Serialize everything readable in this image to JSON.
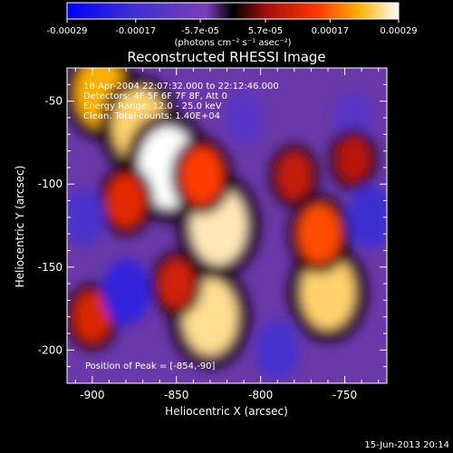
{
  "colorbar": {
    "tick_labels": [
      "-0.00029",
      "-0.00017",
      "-5.7e-05",
      "5.7e-05",
      "0.00017",
      "0.00029"
    ],
    "unit_label": "(photons cm⁻² s⁻¹ asec⁻²)",
    "range": [
      -0.00029,
      0.00029
    ]
  },
  "plot": {
    "title": "Reconstructed RHESSI Image",
    "xlabel": "Heliocentric X (arcsec)",
    "ylabel": "Heliocentric Y (arcsec)",
    "x_ticks": [
      "-900",
      "-850",
      "-800",
      "-750"
    ],
    "y_ticks": [
      "-50",
      "-100",
      "-150",
      "-200"
    ],
    "xlim": [
      -915,
      -725
    ],
    "ylim": [
      -220,
      -30
    ]
  },
  "annotations": {
    "time_range": "18-Apr-2004 22:07:32.000 to 22:12:46.000",
    "detectors": "Detectors: 4F 5F 6F 7F 8F, Att 0",
    "energy": "Energy Range: 12.0 - 25.0 keV",
    "counts": "Clean. Total counts: 1.40E+04",
    "peak": "Position of Peak = [-854,-90]"
  },
  "footer": {
    "timestamp": "15-Jun-2013 20:14"
  },
  "colors": {
    "background": "#000000",
    "low": "#0000ff",
    "mid_low": "#7a3fb8",
    "mid_high": "#ff3300",
    "high": "#ffffff"
  },
  "chart_data": {
    "type": "heatmap",
    "title": "Reconstructed RHESSI Image",
    "xlabel": "Heliocentric X (arcsec)",
    "ylabel": "Heliocentric Y (arcsec)",
    "xlim": [
      -915,
      -725
    ],
    "ylim": [
      -220,
      -30
    ],
    "peak": [
      -854,
      -90
    ],
    "blobs": [
      {
        "x": -895,
        "y": -45,
        "v": 0.00022
      },
      {
        "x": -872,
        "y": -65,
        "v": 0.00025
      },
      {
        "x": -855,
        "y": -90,
        "v": 0.00029
      },
      {
        "x": -880,
        "y": -110,
        "v": 0.00012
      },
      {
        "x": -825,
        "y": -125,
        "v": 0.00027
      },
      {
        "x": -835,
        "y": -95,
        "v": 0.00015
      },
      {
        "x": -830,
        "y": -180,
        "v": 0.00026
      },
      {
        "x": -850,
        "y": -160,
        "v": 0.0001
      },
      {
        "x": -760,
        "y": -165,
        "v": 0.00025
      },
      {
        "x": -765,
        "y": -130,
        "v": 0.00016
      },
      {
        "x": -780,
        "y": -95,
        "v": 9e-05
      },
      {
        "x": -900,
        "y": -180,
        "v": 0.00011
      },
      {
        "x": -810,
        "y": -60,
        "v": -0.00012
      },
      {
        "x": -880,
        "y": -165,
        "v": -0.0002
      },
      {
        "x": -905,
        "y": -120,
        "v": -0.00015
      },
      {
        "x": -735,
        "y": -120,
        "v": -0.00018
      },
      {
        "x": -790,
        "y": -200,
        "v": -0.00016
      },
      {
        "x": -745,
        "y": -60,
        "v": -0.00012
      },
      {
        "x": -745,
        "y": -85,
        "v": 8e-05
      }
    ]
  }
}
